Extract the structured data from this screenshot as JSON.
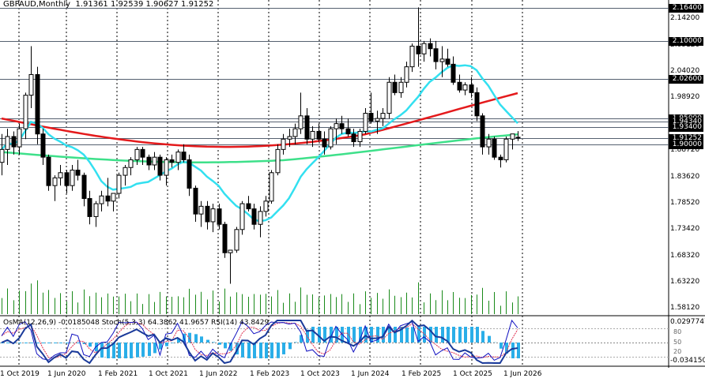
{
  "header": {
    "symbol_info": "GBPAUD,Monthly",
    "ohlc": "1.91361 1.92539 1.90627 1.91252"
  },
  "osc_header": "OsMA(12,26,9) -0.0185048  Stoch(5,3,3) 64.3862 41.9657  RSI(14) 43.8429",
  "price_axis": {
    "labels": [
      "2.14200",
      "2.09120",
      "2.04020",
      "1.98920",
      "1.88720",
      "1.83620",
      "1.78520",
      "1.73420",
      "1.68320",
      "1.63220",
      "1.58120"
    ],
    "tags": [
      "2.16400",
      "2.10000",
      "2.02600",
      "1.95000",
      "1.94340",
      "1.93400",
      "1.91252",
      "1.90000"
    ]
  },
  "osc_axis": {
    "labels": [
      "0.0297747",
      "-0.034150"
    ],
    "mini": [
      "80",
      "50",
      "20"
    ]
  },
  "time_axis": [
    "1 Oct 2019",
    "1 Jun 2020",
    "1 Feb 2021",
    "1 Oct 2021",
    "1 Jun 2022",
    "1 Feb 2023",
    "1 Oct 2023",
    "1 Jun 2024",
    "1 Feb 2025",
    "1 Oct 2025",
    "1 Jun 2026"
  ],
  "colors": {
    "bull": "#ffffff",
    "bear": "#000000",
    "ma_red": "#e41a1c",
    "ma_cyan": "#33e0f0",
    "ma_green": "#3ee08a",
    "volume": "#1a8a1a",
    "osma": "#2aaee8",
    "stoch_main": "#1010c0",
    "stoch_signal": "#e03050"
  },
  "chart_data": {
    "type": "candlestick",
    "symbol": "GBPAUD",
    "timeframe": "Monthly",
    "last_close": 1.91252,
    "candles": [
      [
        1.865,
        1.92,
        1.84,
        1.89
      ],
      [
        1.89,
        1.93,
        1.86,
        1.915
      ],
      [
        1.915,
        1.925,
        1.88,
        1.895
      ],
      [
        1.895,
        1.94,
        1.88,
        1.93
      ],
      [
        1.93,
        2.0,
        1.91,
        1.995
      ],
      [
        1.995,
        2.09,
        1.97,
        2.035
      ],
      [
        2.035,
        2.05,
        1.9,
        1.92
      ],
      [
        1.92,
        1.93,
        1.86,
        1.875
      ],
      [
        1.875,
        1.88,
        1.81,
        1.82
      ],
      [
        1.82,
        1.84,
        1.79,
        1.835
      ],
      [
        1.835,
        1.86,
        1.82,
        1.845
      ],
      [
        1.845,
        1.85,
        1.805,
        1.82
      ],
      [
        1.82,
        1.86,
        1.81,
        1.85
      ],
      [
        1.85,
        1.87,
        1.83,
        1.84
      ],
      [
        1.84,
        1.845,
        1.78,
        1.795
      ],
      [
        1.795,
        1.81,
        1.745,
        1.76
      ],
      [
        1.76,
        1.79,
        1.74,
        1.785
      ],
      [
        1.785,
        1.81,
        1.77,
        1.8
      ],
      [
        1.8,
        1.835,
        1.78,
        1.79
      ],
      [
        1.79,
        1.8,
        1.77,
        1.805
      ],
      [
        1.805,
        1.845,
        1.795,
        1.84
      ],
      [
        1.84,
        1.86,
        1.82,
        1.855
      ],
      [
        1.855,
        1.875,
        1.84,
        1.87
      ],
      [
        1.87,
        1.895,
        1.86,
        1.89
      ],
      [
        1.89,
        1.895,
        1.86,
        1.875
      ],
      [
        1.875,
        1.88,
        1.85,
        1.86
      ],
      [
        1.86,
        1.885,
        1.85,
        1.875
      ],
      [
        1.875,
        1.88,
        1.83,
        1.84
      ],
      [
        1.84,
        1.875,
        1.82,
        1.87
      ],
      [
        1.87,
        1.88,
        1.855,
        1.865
      ],
      [
        1.865,
        1.89,
        1.85,
        1.885
      ],
      [
        1.885,
        1.9,
        1.865,
        1.87
      ],
      [
        1.87,
        1.88,
        1.8,
        1.815
      ],
      [
        1.815,
        1.82,
        1.75,
        1.765
      ],
      [
        1.765,
        1.79,
        1.74,
        1.78
      ],
      [
        1.78,
        1.79,
        1.735,
        1.75
      ],
      [
        1.75,
        1.785,
        1.73,
        1.775
      ],
      [
        1.775,
        1.785,
        1.735,
        1.745
      ],
      [
        1.745,
        1.75,
        1.68,
        1.69
      ],
      [
        1.69,
        1.695,
        1.63,
        1.695
      ],
      [
        1.695,
        1.74,
        1.69,
        1.735
      ],
      [
        1.735,
        1.79,
        1.725,
        1.785
      ],
      [
        1.785,
        1.8,
        1.77,
        1.775
      ],
      [
        1.775,
        1.785,
        1.735,
        1.745
      ],
      [
        1.745,
        1.78,
        1.72,
        1.77
      ],
      [
        1.77,
        1.8,
        1.76,
        1.79
      ],
      [
        1.79,
        1.85,
        1.785,
        1.845
      ],
      [
        1.845,
        1.9,
        1.84,
        1.89
      ],
      [
        1.89,
        1.92,
        1.88,
        1.91
      ],
      [
        1.91,
        1.93,
        1.895,
        1.915
      ],
      [
        1.915,
        1.94,
        1.9,
        1.93
      ],
      [
        1.93,
        2.0,
        1.92,
        1.955
      ],
      [
        1.955,
        1.97,
        1.9,
        1.91
      ],
      [
        1.91,
        1.935,
        1.895,
        1.925
      ],
      [
        1.925,
        1.94,
        1.905,
        1.91
      ],
      [
        1.91,
        1.925,
        1.88,
        1.895
      ],
      [
        1.895,
        1.935,
        1.89,
        1.93
      ],
      [
        1.93,
        1.95,
        1.9,
        1.94
      ],
      [
        1.94,
        1.955,
        1.92,
        1.93
      ],
      [
        1.93,
        1.95,
        1.915,
        1.92
      ],
      [
        1.92,
        1.93,
        1.895,
        1.905
      ],
      [
        1.905,
        1.93,
        1.895,
        1.925
      ],
      [
        1.925,
        1.97,
        1.92,
        1.96
      ],
      [
        1.96,
        2.0,
        1.94,
        1.945
      ],
      [
        1.945,
        1.965,
        1.92,
        1.95
      ],
      [
        1.95,
        1.97,
        1.935,
        1.96
      ],
      [
        1.96,
        2.03,
        1.95,
        2.02
      ],
      [
        2.02,
        2.035,
        1.995,
        2.0
      ],
      [
        2.0,
        2.03,
        1.99,
        2.02
      ],
      [
        2.02,
        2.06,
        2.01,
        2.05
      ],
      [
        2.05,
        2.095,
        2.04,
        2.09
      ],
      [
        2.09,
        2.165,
        2.05,
        2.075
      ],
      [
        2.075,
        2.1,
        2.06,
        2.095
      ],
      [
        2.095,
        2.105,
        2.07,
        2.085
      ],
      [
        2.085,
        2.1,
        2.045,
        2.06
      ],
      [
        2.06,
        2.09,
        2.03,
        2.065
      ],
      [
        2.065,
        2.085,
        2.05,
        2.055
      ],
      [
        2.055,
        2.07,
        2.015,
        2.02
      ],
      [
        2.02,
        2.035,
        2.0,
        2.005
      ],
      [
        2.005,
        2.02,
        1.995,
        2.015
      ],
      [
        2.015,
        2.03,
        1.99,
        2.0
      ],
      [
        2.0,
        2.01,
        1.945,
        1.955
      ],
      [
        1.955,
        1.96,
        1.88,
        1.895
      ],
      [
        1.895,
        1.92,
        1.88,
        1.91
      ],
      [
        1.91,
        1.915,
        1.87,
        1.875
      ],
      [
        1.875,
        1.88,
        1.855,
        1.87
      ],
      [
        1.87,
        1.915,
        1.865,
        1.91
      ],
      [
        1.91,
        1.92,
        1.89,
        1.92
      ],
      [
        1.9136,
        1.9254,
        1.9063,
        1.9125
      ]
    ]
  }
}
